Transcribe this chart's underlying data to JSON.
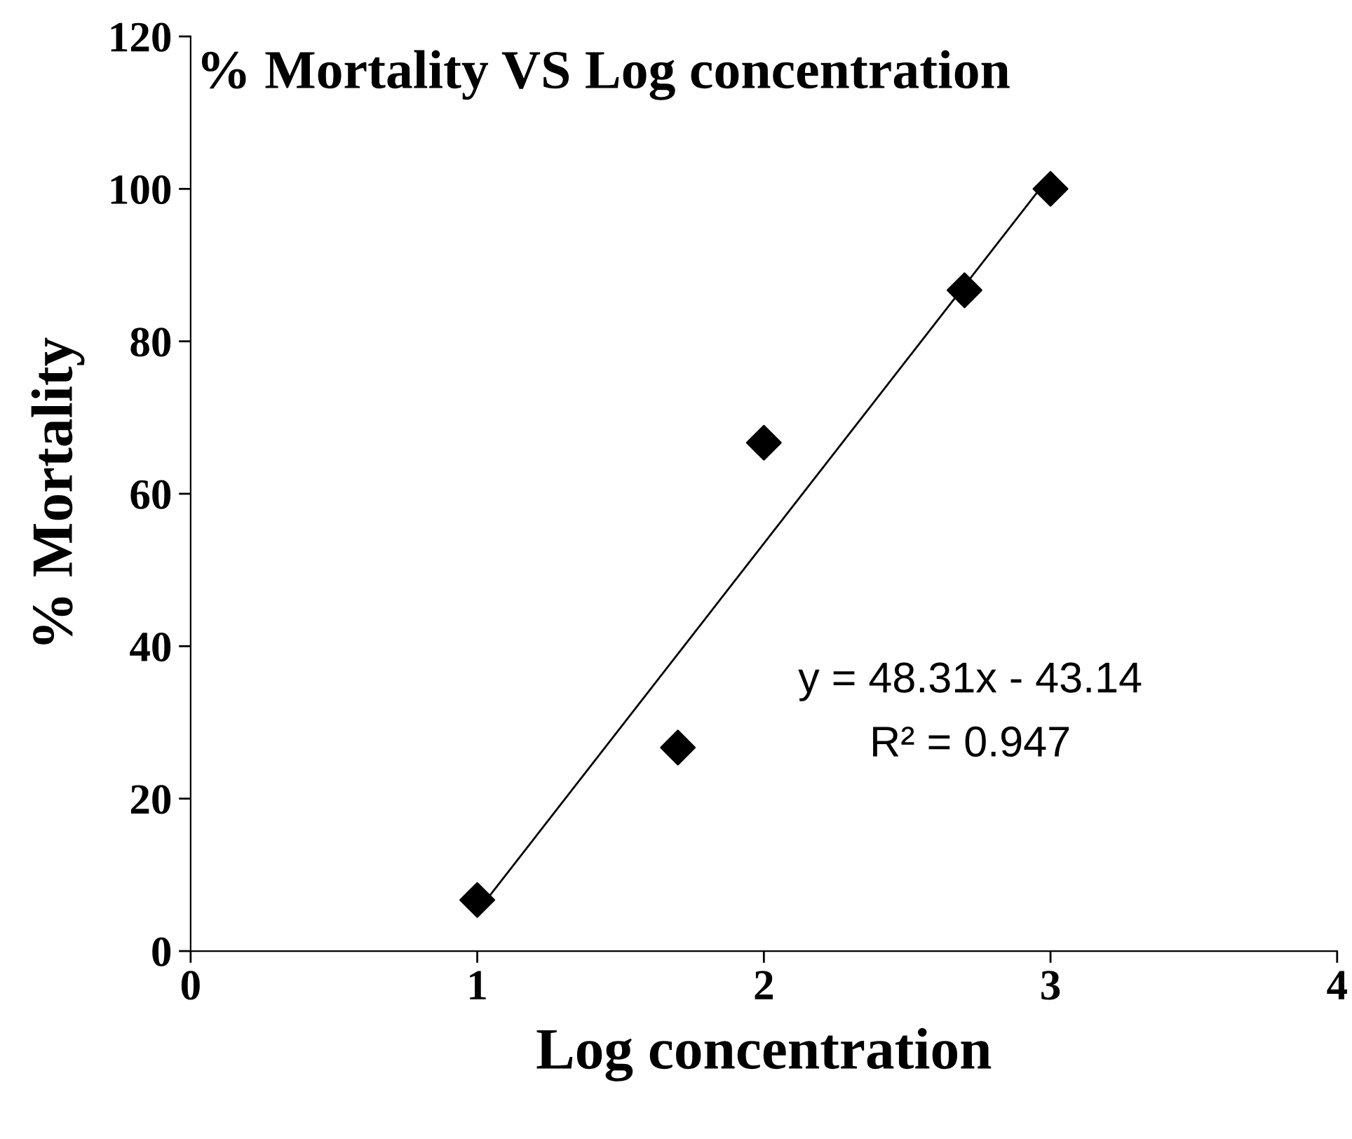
{
  "chart_data": {
    "type": "scatter",
    "title": "% Mortality VS Log concentration",
    "xlabel": "Log concentration",
    "ylabel": "% Mortality",
    "x": [
      1,
      1.7,
      2,
      2.7,
      3
    ],
    "series": [
      {
        "color": "#000000",
        "values": [
          6.7,
          26.7,
          66.7,
          86.7,
          100
        ],
        "marker": "diamond"
      },
      {
        "type": "line",
        "color": "#000000",
        "x": [
          1,
          3
        ],
        "values": [
          5.17,
          101.79
        ],
        "marker": "none",
        "line_style": "solid"
      }
    ],
    "xlim": [
      0,
      4
    ],
    "ylim": [
      0,
      120
    ],
    "xticks": [
      0,
      1,
      2,
      3,
      4
    ],
    "yticks": [
      0,
      20,
      40,
      60,
      80,
      100,
      120
    ],
    "grid": false,
    "annotations": [
      "y = 48.31x - 43.14",
      "R² = 0.947"
    ]
  }
}
